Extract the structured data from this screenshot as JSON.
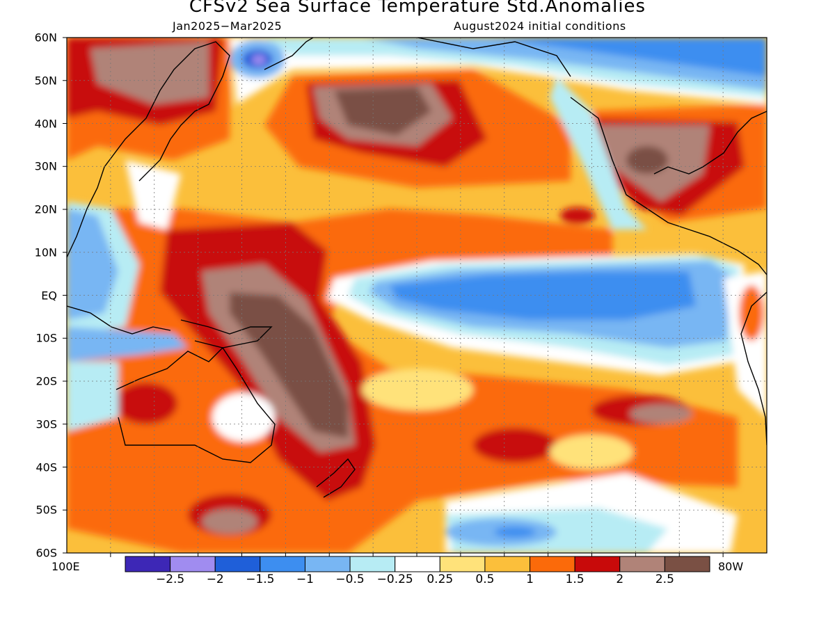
{
  "title": "CFSv2 Sea Surface Temperature Std.Anomalies",
  "subtitle_left": "Jan2025−Mar2025",
  "subtitle_right": "August2024 initial conditions",
  "lat_labels": [
    "60N",
    "50N",
    "40N",
    "30N",
    "20N",
    "10N",
    "EQ",
    "10S",
    "20S",
    "30S",
    "40S",
    "50S",
    "60S"
  ],
  "lon_left_label": "100E",
  "lon_right_label": "80W",
  "colorbar": {
    "colors": [
      "#3d27b6",
      "#a08cf0",
      "#1f5fd9",
      "#3d8ef0",
      "#78b6f3",
      "#b7ecf4",
      "#ffffff",
      "#ffe27a",
      "#fbbf3b",
      "#fb6a0a",
      "#c80a0a",
      "#b08378",
      "#7a5044"
    ],
    "labels": [
      "−2.5",
      "−2",
      "−1.5",
      "−1",
      "−0.5",
      "−0.25",
      "0.25",
      "0.5",
      "1",
      "1.5",
      "2",
      "2.5"
    ]
  },
  "chart_data": {
    "type": "heatmap",
    "title": "CFSv2 Sea Surface Temperature Std.Anomalies",
    "period": "Jan2025−Mar2025",
    "initial_conditions": "August2024 initial conditions",
    "lat_range": [
      -60,
      60
    ],
    "lon_range": [
      "100E",
      "80W"
    ],
    "color_levels": [
      -2.5,
      -2,
      -1.5,
      -1,
      -0.5,
      -0.25,
      0.25,
      0.5,
      1,
      1.5,
      2,
      2.5
    ]
  }
}
